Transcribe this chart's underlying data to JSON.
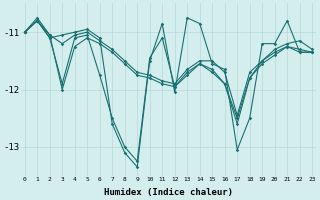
{
  "xlabel": "Humidex (Indice chaleur)",
  "bg_color": "#d4eeee",
  "line_color": "#1a7070",
  "grid_color": "#b8d8d8",
  "xlim": [
    0,
    23
  ],
  "ylim": [
    -13.5,
    -10.5
  ],
  "yticks": [
    -13,
    -12,
    -11
  ],
  "xticks": [
    0,
    1,
    2,
    3,
    4,
    5,
    6,
    7,
    8,
    9,
    10,
    11,
    12,
    13,
    14,
    15,
    16,
    17,
    18,
    19,
    20,
    21,
    22,
    23
  ],
  "series": [
    [
      -11.0,
      -10.8,
      -11.1,
      -11.9,
      -11.1,
      -11.05,
      -11.75,
      -12.5,
      -13.0,
      -13.25,
      -11.45,
      -11.1,
      -11.95,
      -11.75,
      -11.55,
      -11.65,
      -11.9,
      -12.6,
      -11.8,
      -11.5,
      -11.35,
      -11.25,
      -11.3,
      -11.35
    ],
    [
      -11.0,
      -10.8,
      -11.05,
      -12.0,
      -11.25,
      -11.1,
      -11.2,
      -11.35,
      -11.55,
      -11.75,
      -11.8,
      -11.9,
      -11.95,
      -11.7,
      -11.55,
      -11.7,
      -11.9,
      -12.5,
      -11.8,
      -11.55,
      -11.4,
      -11.25,
      -11.35,
      -11.35
    ],
    [
      -11.0,
      -10.75,
      -11.05,
      -11.2,
      -11.05,
      -11.0,
      -11.15,
      -11.3,
      -11.5,
      -11.7,
      -11.75,
      -11.85,
      -11.9,
      -11.65,
      -11.5,
      -11.5,
      -11.7,
      -12.45,
      -11.7,
      -11.5,
      -11.3,
      -11.2,
      -11.15,
      -11.3
    ],
    [
      -11.0,
      -10.8,
      -11.1,
      -11.05,
      -11.0,
      -10.95,
      -11.1,
      -12.6,
      -13.1,
      -13.35,
      -11.5,
      -10.85,
      -12.05,
      -10.75,
      -10.85,
      -11.55,
      -11.65,
      -13.05,
      -12.5,
      -11.2,
      -11.2,
      -10.8,
      -11.35,
      -11.35
    ]
  ]
}
